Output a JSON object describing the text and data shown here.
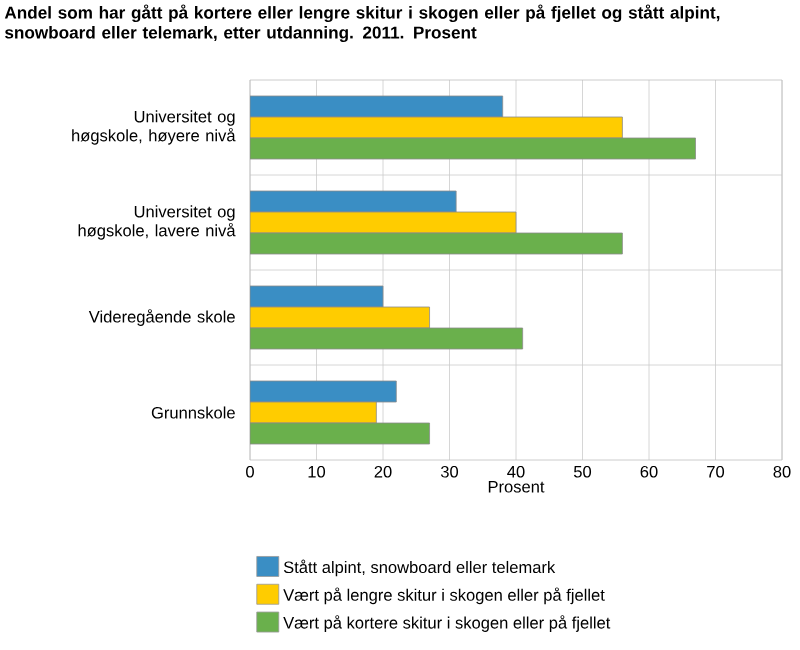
{
  "chart_data": {
    "type": "bar",
    "orientation": "horizontal",
    "title": "Andel som har gått på kortere eller lengre skitur i skogen eller på fjellet og stått alpint, snowboard eller telemark, etter utdanning. 2011. Prosent",
    "xlabel": "Prosent",
    "categories": [
      "Universitet og høgskole, høyere nivå",
      "Universitet og høgskole, lavere nivå",
      "Videregående skole",
      "Grunnskole"
    ],
    "series": [
      {
        "name": "Stått alpint, snowboard eller telemark",
        "color": "#3a8ec4",
        "values": [
          38,
          31,
          20,
          22
        ]
      },
      {
        "name": "Vært på lengre skitur i skogen eller på fjellet",
        "color": "#ffcc00",
        "values": [
          56,
          40,
          27,
          19
        ]
      },
      {
        "name": "Vært på kortere skitur i skogen eller på fjellet",
        "color": "#6ab04c",
        "values": [
          67,
          56,
          41,
          27
        ]
      }
    ],
    "xlim": [
      0,
      80
    ],
    "xticks": [
      0,
      10,
      20,
      30,
      40,
      50,
      60,
      70,
      80
    ],
    "grid": true,
    "legend": "bottom"
  }
}
